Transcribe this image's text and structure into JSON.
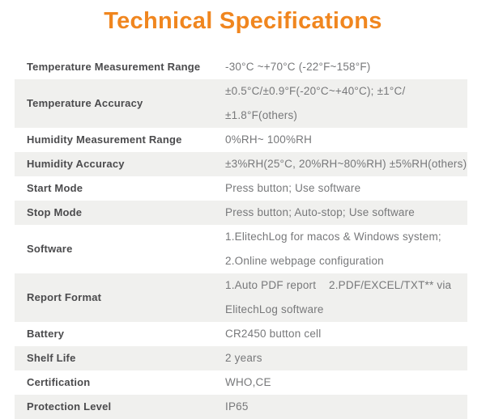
{
  "title": "Technical Specifications",
  "colors": {
    "accent": "#F0861F",
    "row_alt_bg": "#F0F0EE",
    "label_text": "#4B4B4D",
    "value_text": "#77787A"
  },
  "table": {
    "rows": [
      {
        "label": "Temperature Measurement Range",
        "values": [
          "-30°C ~+70°C (-22°F~158°F)"
        ]
      },
      {
        "label": "Temperature Accuracy",
        "values": [
          "±0.5°C/±0.9°F(-20°C~+40°C); ±1°C/ ±1.8°F(others)"
        ]
      },
      {
        "label": "Humidity Measurement Range",
        "values": [
          "0%RH~ 100%RH"
        ]
      },
      {
        "label": "Humidity Accuracy",
        "values": [
          "±3%RH(25°C, 20%RH~80%RH) ±5%RH(others)"
        ]
      },
      {
        "label": "Start Mode",
        "values": [
          "Press button; Use software"
        ]
      },
      {
        "label": "Stop Mode",
        "values": [
          "Press button; Auto-stop; Use software"
        ]
      },
      {
        "label": "Software",
        "values": [
          "1.ElitechLog for macos & Windows system;",
          "2.Online webpage configuration"
        ]
      },
      {
        "label": "Report Format",
        "values": [
          "1.Auto PDF report    2.PDF/EXCEL/TXT** via",
          "ElitechLog software"
        ]
      },
      {
        "label": "Battery",
        "values": [
          "CR2450 button cell"
        ]
      },
      {
        "label": "Shelf Life",
        "values": [
          "2 years"
        ]
      },
      {
        "label": "Certification",
        "values": [
          "WHO,CE"
        ]
      },
      {
        "label": "Protection Level",
        "values": [
          "IP65"
        ]
      }
    ]
  }
}
